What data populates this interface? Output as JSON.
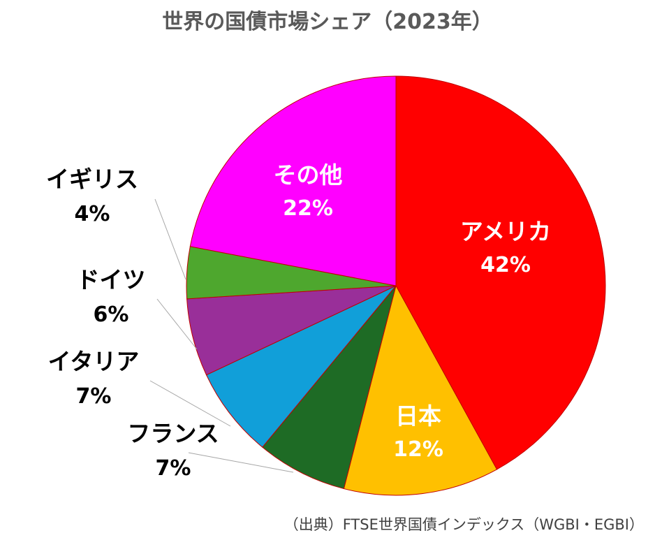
{
  "chart_data": {
    "type": "pie",
    "title": "世界の国債市場シェア（2023年）",
    "source": "（出典）FTSE世界国債インデックス（WGBI・EGBI）",
    "slices": [
      {
        "label": "アメリカ",
        "value": 42,
        "value_label": "42%",
        "color": "#ff0000",
        "label_inside": true,
        "text_color": "#ffffff"
      },
      {
        "label": "日本",
        "value": 12,
        "value_label": "12%",
        "color": "#ffc000",
        "label_inside": true,
        "text_color": "#ffffff"
      },
      {
        "label": "フランス",
        "value": 7,
        "value_label": "7%",
        "color": "#1e6b25",
        "label_inside": false,
        "text_color": "#000000"
      },
      {
        "label": "イタリア",
        "value": 7,
        "value_label": "7%",
        "color": "#119fd9",
        "label_inside": false,
        "text_color": "#000000"
      },
      {
        "label": "ドイツ",
        "value": 6,
        "value_label": "6%",
        "color": "#992f99",
        "label_inside": false,
        "text_color": "#000000"
      },
      {
        "label": "イギリス",
        "value": 4,
        "value_label": "4%",
        "color": "#4ea72e",
        "label_inside": false,
        "text_color": "#000000"
      },
      {
        "label": "その他",
        "value": 22,
        "value_label": "22%",
        "color": "#ff00ff",
        "label_inside": true,
        "text_color": "#ffffff"
      }
    ]
  }
}
